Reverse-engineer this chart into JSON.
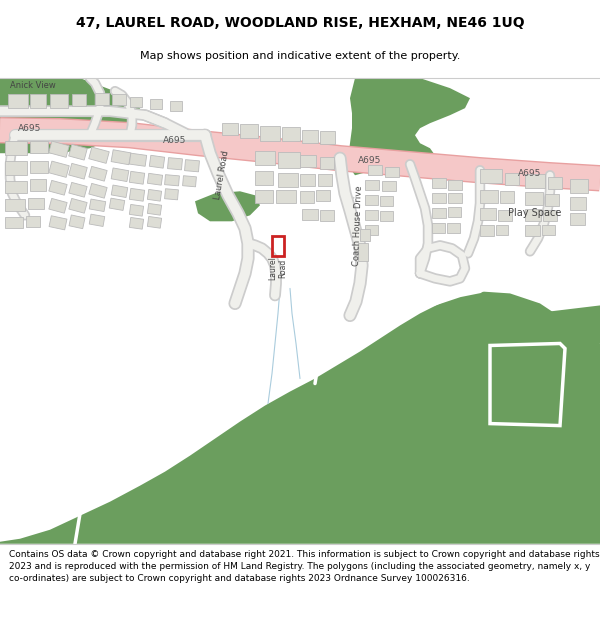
{
  "title_line1": "47, LAUREL ROAD, WOODLAND RISE, HEXHAM, NE46 1UQ",
  "title_line2": "Map shows position and indicative extent of the property.",
  "footer": "Contains OS data © Crown copyright and database right 2021. This information is subject to Crown copyright and database rights 2023 and is reproduced with the permission of HM Land Registry. The polygons (including the associated geometry, namely x, y co-ordinates) are subject to Crown copyright and database rights 2023 Ordnance Survey 100026316.",
  "map_bg": "#f5f5f0",
  "road_fill": "#f5c8c8",
  "road_edge": "#e8a0a0",
  "green_color": "#6b9e5e",
  "building_fill": "#ddddd5",
  "building_edge": "#bbbbbb",
  "highlight_color": "#cc2222",
  "local_road_fill": "#f0f0ec",
  "local_road_edge": "#cccccc",
  "text_color": "#444444",
  "title_fontsize": 10,
  "subtitle_fontsize": 8,
  "footer_fontsize": 6.5
}
